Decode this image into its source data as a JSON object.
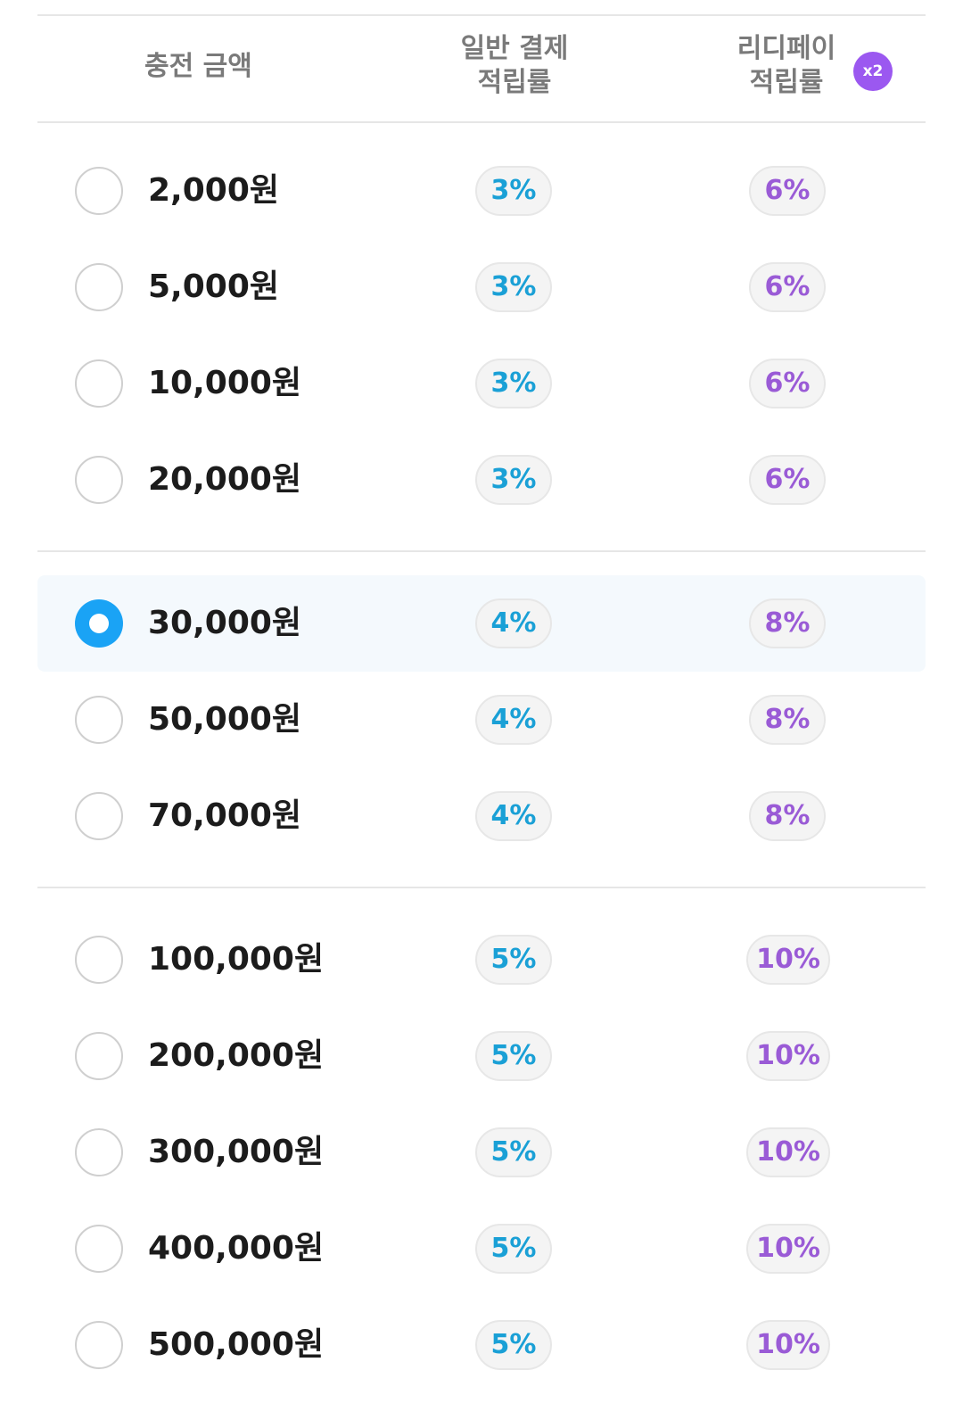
{
  "header": {
    "amount_label": "충전 금액",
    "normal_label_line1": "일반 결제",
    "normal_label_line2": "적립률",
    "ridi_label_line1": "리디페이",
    "ridi_label_line2": "적립률",
    "ridi_multiplier_badge": "x2"
  },
  "colors": {
    "selected_radio": "#1aa3f5",
    "normal_rate_text": "#1aa0d6",
    "ridi_rate_text": "#9a5bd6",
    "badge": "#9b58f0",
    "selected_row_bg": "#f4f9fd"
  },
  "selected_amount": "30,000원",
  "options": [
    {
      "amount": "2,000원",
      "normal_rate": "3%",
      "ridi_rate": "6%",
      "selected": false
    },
    {
      "amount": "5,000원",
      "normal_rate": "3%",
      "ridi_rate": "6%",
      "selected": false
    },
    {
      "amount": "10,000원",
      "normal_rate": "3%",
      "ridi_rate": "6%",
      "selected": false
    },
    {
      "amount": "20,000원",
      "normal_rate": "3%",
      "ridi_rate": "6%",
      "selected": false
    },
    {
      "amount": "30,000원",
      "normal_rate": "4%",
      "ridi_rate": "8%",
      "selected": true
    },
    {
      "amount": "50,000원",
      "normal_rate": "4%",
      "ridi_rate": "8%",
      "selected": false
    },
    {
      "amount": "70,000원",
      "normal_rate": "4%",
      "ridi_rate": "8%",
      "selected": false
    },
    {
      "amount": "100,000원",
      "normal_rate": "5%",
      "ridi_rate": "10%",
      "selected": false
    },
    {
      "amount": "200,000원",
      "normal_rate": "5%",
      "ridi_rate": "10%",
      "selected": false
    },
    {
      "amount": "300,000원",
      "normal_rate": "5%",
      "ridi_rate": "10%",
      "selected": false
    },
    {
      "amount": "400,000원",
      "normal_rate": "5%",
      "ridi_rate": "10%",
      "selected": false
    },
    {
      "amount": "500,000원",
      "normal_rate": "5%",
      "ridi_rate": "10%",
      "selected": false
    }
  ]
}
